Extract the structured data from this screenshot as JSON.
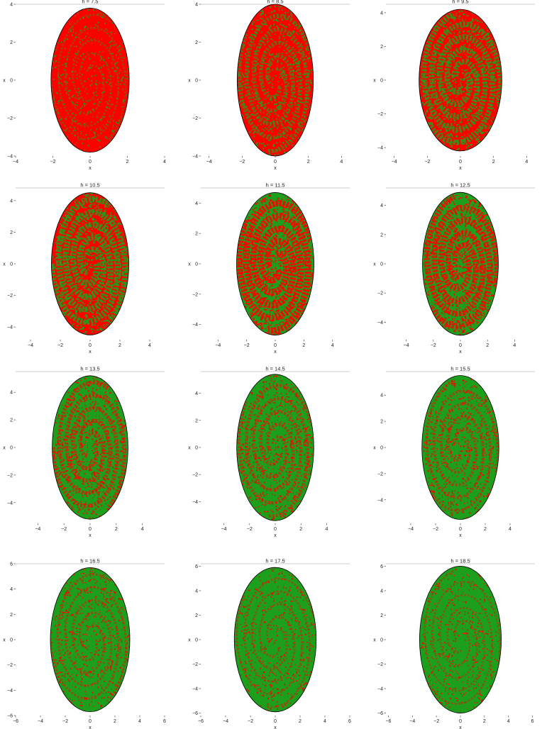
{
  "figure": {
    "colors": {
      "region_a": "#ff0000",
      "region_b": "#1ca01c",
      "boundary": "#000000",
      "frame": "#9a9a9a"
    }
  },
  "chart_data": [
    {
      "type": "scatter",
      "title": "h = 7.5",
      "xlabel": "x",
      "ylabel": "x",
      "xlim": [
        -4,
        4
      ],
      "ylim": [
        -4,
        4
      ],
      "xticks": [
        "−4",
        "−2",
        "0",
        "2",
        "4"
      ],
      "yticks": [
        "−4",
        "−2",
        "0",
        "2",
        "4"
      ],
      "ellipse": {
        "x_semi_axis": 2.1,
        "y_semi_axis": 3.8
      },
      "green_fraction": 0.05
    },
    {
      "type": "scatter",
      "title": "h = 8.5",
      "xlabel": "x",
      "ylabel": "x",
      "xlim": [
        -4.5,
        4.5
      ],
      "ylim": [
        -4,
        4
      ],
      "xticks": [
        "−4",
        "−2",
        "0",
        "2",
        "4"
      ],
      "yticks": [
        "−4",
        "−2",
        "0",
        "2",
        "4"
      ],
      "ellipse": {
        "x_semi_axis": 2.3,
        "y_semi_axis": 4.0
      },
      "green_fraction": 0.25
    },
    {
      "type": "scatter",
      "title": "h = 9.5",
      "xlabel": "x",
      "ylabel": "x",
      "xlim": [
        -4.5,
        4.5
      ],
      "ylim": [
        -4.5,
        4.5
      ],
      "xticks": [
        "−4",
        "−2",
        "0",
        "2",
        "4"
      ],
      "yticks": [
        "−4",
        "−2",
        "0",
        "2",
        "4"
      ],
      "ellipse": {
        "x_semi_axis": 2.5,
        "y_semi_axis": 4.2
      },
      "green_fraction": 0.4
    },
    {
      "type": "scatter",
      "title": "h = 10.5",
      "xlabel": "x",
      "ylabel": "x",
      "xlim": [
        -5,
        5
      ],
      "ylim": [
        -4.8,
        4.8
      ],
      "xticks": [
        "−4",
        "−2",
        "0",
        "2",
        "4"
      ],
      "yticks": [
        "−4",
        "−2",
        "0",
        "2",
        "4"
      ],
      "ellipse": {
        "x_semi_axis": 2.6,
        "y_semi_axis": 4.5
      },
      "green_fraction": 0.45
    },
    {
      "type": "scatter",
      "title": "h = 11.5",
      "xlabel": "x",
      "ylabel": "x",
      "xlim": [
        -5.2,
        5.2
      ],
      "ylim": [
        -5,
        5
      ],
      "xticks": [
        "−4",
        "−2",
        "0",
        "2",
        "4"
      ],
      "yticks": [
        "−4",
        "−2",
        "0",
        "2",
        "4"
      ],
      "ellipse": {
        "x_semi_axis": 2.7,
        "y_semi_axis": 4.7
      },
      "green_fraction": 0.5
    },
    {
      "type": "scatter",
      "title": "h = 12.5",
      "xlabel": "x",
      "ylabel": "x",
      "xlim": [
        -5.5,
        5.5
      ],
      "ylim": [
        -5.2,
        5.2
      ],
      "xticks": [
        "−4",
        "−2",
        "0",
        "2",
        "4"
      ],
      "yticks": [
        "−4",
        "−2",
        "0",
        "2",
        "4"
      ],
      "ellipse": {
        "x_semi_axis": 2.8,
        "y_semi_axis": 4.9
      },
      "green_fraction": 0.58
    },
    {
      "type": "scatter",
      "title": "h = 13.5",
      "xlabel": "x",
      "ylabel": "x",
      "xlim": [
        -5.7,
        5.7
      ],
      "ylim": [
        -5.5,
        5.5
      ],
      "xticks": [
        "−4",
        "−2",
        "0",
        "2",
        "4"
      ],
      "yticks": [
        "−4",
        "−2",
        "0",
        "2",
        "4"
      ],
      "ellipse": {
        "x_semi_axis": 2.9,
        "y_semi_axis": 5.2
      },
      "green_fraction": 0.75
    },
    {
      "type": "scatter",
      "title": "h = 14.5",
      "xlabel": "x",
      "ylabel": "x",
      "xlim": [
        -5.8,
        5.8
      ],
      "ylim": [
        -5.6,
        5.6
      ],
      "xticks": [
        "−4",
        "−2",
        "0",
        "2",
        "4"
      ],
      "yticks": [
        "−4",
        "−2",
        "0",
        "2",
        "4"
      ],
      "ellipse": {
        "x_semi_axis": 3.0,
        "y_semi_axis": 5.4
      },
      "green_fraction": 0.82
    },
    {
      "type": "scatter",
      "title": "h = 15.5",
      "xlabel": "x",
      "ylabel": "x",
      "xlim": [
        -6,
        6
      ],
      "ylim": [
        -5.8,
        5.8
      ],
      "xticks": [
        "−4",
        "−2",
        "0",
        "2",
        "4"
      ],
      "yticks": [
        "−4",
        "−2",
        "0",
        "2",
        "4"
      ],
      "ellipse": {
        "x_semi_axis": 3.1,
        "y_semi_axis": 5.5
      },
      "green_fraction": 0.86
    },
    {
      "type": "scatter",
      "title": "h = 16.5",
      "xlabel": "x",
      "ylabel": "x",
      "xlim": [
        -6,
        6
      ],
      "ylim": [
        -6,
        6
      ],
      "xticks": [
        "−6",
        "−4",
        "−2",
        "0",
        "2",
        "4",
        "6"
      ],
      "yticks": [
        "−6",
        "−4",
        "−2",
        "0",
        "2",
        "4",
        "6"
      ],
      "ellipse": {
        "x_semi_axis": 3.2,
        "y_semi_axis": 5.7
      },
      "green_fraction": 0.9
    },
    {
      "type": "scatter",
      "title": "h = 17.5",
      "xlabel": "x",
      "ylabel": "x",
      "xlim": [
        -6,
        6
      ],
      "ylim": [
        -6.2,
        6.2
      ],
      "xticks": [
        "−6",
        "−4",
        "−2",
        "0",
        "2",
        "4",
        "6"
      ],
      "yticks": [
        "−6",
        "−4",
        "−2",
        "0",
        "2",
        "4",
        "6"
      ],
      "ellipse": {
        "x_semi_axis": 3.3,
        "y_semi_axis": 5.9
      },
      "green_fraction": 0.93
    },
    {
      "type": "scatter",
      "title": "h = 18.5",
      "xlabel": "x",
      "ylabel": "x",
      "xlim": [
        -6.2,
        6.2
      ],
      "ylim": [
        -6.2,
        6.2
      ],
      "xticks": [
        "−6",
        "−4",
        "−2",
        "0",
        "2",
        "4",
        "6"
      ],
      "yticks": [
        "−6",
        "−4",
        "−2",
        "0",
        "2",
        "4",
        "6"
      ],
      "ellipse": {
        "x_semi_axis": 3.4,
        "y_semi_axis": 6.0
      },
      "green_fraction": 0.95
    }
  ]
}
